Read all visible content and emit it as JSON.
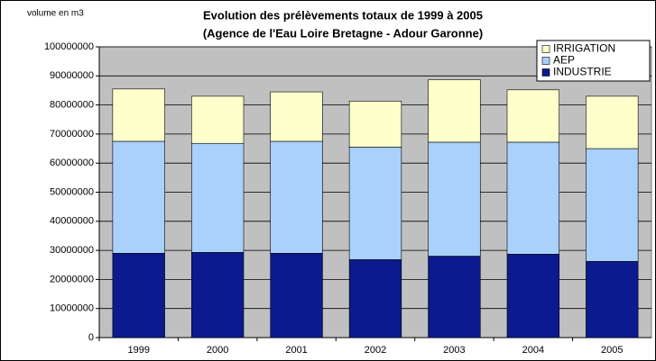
{
  "chart_data": {
    "type": "stacked_bar",
    "title": "Evolution des prélèvements totaux de 1999 à 2005",
    "subtitle": "(Agence de l'Eau Loire Bretagne - Adour Garonne)",
    "y_label": "volume en m3",
    "categories": [
      "1999",
      "2000",
      "2001",
      "2002",
      "2003",
      "2004",
      "2005"
    ],
    "series": [
      {
        "name": "INDUSTRIE",
        "color": "#0b1a8e",
        "values": [
          29000000,
          29300000,
          29000000,
          26800000,
          28000000,
          28700000,
          26200000
        ]
      },
      {
        "name": "AEP",
        "color": "#a9d1fb",
        "values": [
          38500000,
          37500000,
          38500000,
          38700000,
          39200000,
          38500000,
          38800000
        ]
      },
      {
        "name": "IRRIGATION",
        "color": "#ffffcc",
        "values": [
          18000000,
          16200000,
          17000000,
          15800000,
          21500000,
          18000000,
          18000000
        ]
      }
    ],
    "ylim": [
      0,
      100000000
    ],
    "yticks": [
      0,
      10000000,
      20000000,
      30000000,
      40000000,
      50000000,
      60000000,
      70000000,
      80000000,
      90000000,
      100000000
    ],
    "grid": true,
    "legend": "top-right",
    "background": "#c0c0c0"
  }
}
